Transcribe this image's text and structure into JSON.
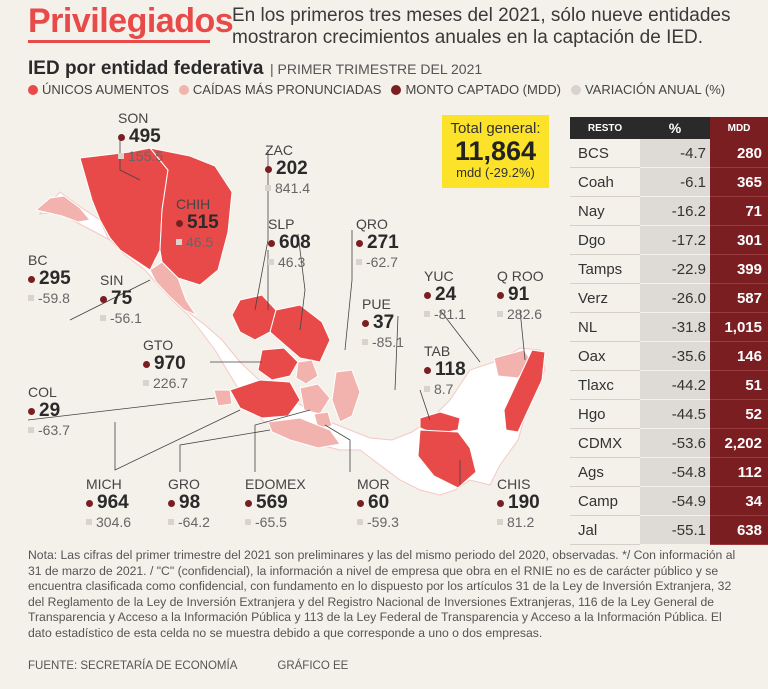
{
  "header": {
    "title": "Privilegiados",
    "subtitle": "En los primeros tres meses del 2021, sólo nueve entidades mostraron crecimientos anuales en la captación de IED."
  },
  "section": {
    "title": "IED por entidad federativa",
    "separator": "|",
    "subtitle": "PRIMER TRIMESTRE DEL 2021"
  },
  "legend": [
    {
      "label": "ÚNICOS AUMENTOS",
      "color": "#e84a4a"
    },
    {
      "label": "CAÍDAS MÁS PRONUNCIADAS",
      "color": "#f2b3ae"
    },
    {
      "label": "MONTO CAPTADO (MDD)",
      "color": "#7a1e22"
    },
    {
      "label": "VARIACIÓN ANUAL (%)",
      "color": "#d9d3cc"
    }
  ],
  "total": {
    "label": "Total general:",
    "value": "11,864",
    "detail": "mdd (-29.2%)"
  },
  "chart_data": {
    "type": "table",
    "title": "IED por entidad federativa",
    "mapped_states": [
      {
        "name": "SON",
        "monto": "495",
        "variacion": "155.5",
        "group": "aumento"
      },
      {
        "name": "ZAC",
        "monto": "202",
        "variacion": "841.4",
        "group": "aumento"
      },
      {
        "name": "CHIH",
        "monto": "515",
        "variacion": "46.5",
        "group": "aumento"
      },
      {
        "name": "BC",
        "monto": "295",
        "variacion": "-59.8",
        "group": "caida"
      },
      {
        "name": "SIN",
        "monto": "75",
        "variacion": "-56.1",
        "group": "caida"
      },
      {
        "name": "SLP",
        "monto": "608",
        "variacion": "46.3",
        "group": "aumento"
      },
      {
        "name": "QRO",
        "monto": "271",
        "variacion": "-62.7",
        "group": "caida"
      },
      {
        "name": "YUC",
        "monto": "24",
        "variacion": "-81.1",
        "group": "caida"
      },
      {
        "name": "Q ROO",
        "monto": "91",
        "variacion": "282.6",
        "group": "aumento"
      },
      {
        "name": "PUE",
        "monto": "37",
        "variacion": "-85.1",
        "group": "caida"
      },
      {
        "name": "GTO",
        "monto": "970",
        "variacion": "226.7",
        "group": "aumento"
      },
      {
        "name": "TAB",
        "monto": "118",
        "variacion": "8.7",
        "group": "aumento"
      },
      {
        "name": "COL",
        "monto": "29",
        "variacion": "-63.7",
        "group": "caida"
      },
      {
        "name": "MICH",
        "monto": "964",
        "variacion": "304.6",
        "group": "aumento"
      },
      {
        "name": "GRO",
        "monto": "98",
        "variacion": "-64.2",
        "group": "caida"
      },
      {
        "name": "EDOMEX",
        "monto": "569",
        "variacion": "-65.5",
        "group": "caida"
      },
      {
        "name": "MOR",
        "monto": "60",
        "variacion": "-59.3",
        "group": "caida"
      },
      {
        "name": "CHIS",
        "monto": "190",
        "variacion": "81.2",
        "group": "aumento"
      }
    ],
    "resto_headers": [
      "RESTO",
      "%",
      "MDD"
    ],
    "resto": [
      {
        "name": "BCS",
        "pct": "-4.7",
        "mdd": "280"
      },
      {
        "name": "Coah",
        "pct": "-6.1",
        "mdd": "365"
      },
      {
        "name": "Nay",
        "pct": "-16.2",
        "mdd": "71"
      },
      {
        "name": "Dgo",
        "pct": "-17.2",
        "mdd": "301"
      },
      {
        "name": "Tamps",
        "pct": "-22.9",
        "mdd": "399"
      },
      {
        "name": "Verz",
        "pct": "-26.0",
        "mdd": "587"
      },
      {
        "name": "NL",
        "pct": "-31.8",
        "mdd": "1,015"
      },
      {
        "name": "Oax",
        "pct": "-35.6",
        "mdd": "146"
      },
      {
        "name": "Tlaxc",
        "pct": "-44.2",
        "mdd": "51"
      },
      {
        "name": "Hgo",
        "pct": "-44.5",
        "mdd": "52"
      },
      {
        "name": "CDMX",
        "pct": "-53.6",
        "mdd": "2,202"
      },
      {
        "name": "Ags",
        "pct": "-54.8",
        "mdd": "112"
      },
      {
        "name": "Camp",
        "pct": "-54.9",
        "mdd": "34"
      },
      {
        "name": "Jal",
        "pct": "-55.1",
        "mdd": "638"
      }
    ]
  },
  "note": "Nota: Las cifras del primer trimestre del 2021 son preliminares y las del mismo periodo del 2020, observadas. */ Con información al 31 de marzo de 2021. / \"C\" (confidencial), la información a nivel de empresa que obra en el RNIE no es de carácter público y se encuentra clasificada como confidencial, con fundamento en lo dispuesto por los artículos 31 de la Ley de Inversión Extranjera, 32 del Reglamento de la Ley de Inversión Extranjera y del Registro Nacional de Inversiones Extranjeras, 116 de la Ley General de Transparencia y Acceso a la Información Pública y 113 de la Ley Federal de Transparencia y Acceso a la Información Pública. El dato estadístico de esta celda no se muestra debido a que corresponde a uno o dos empresas.",
  "source": "FUENTE: SECRETARÍA DE ECONOMÍA",
  "credit": "GRÁFICO EE"
}
